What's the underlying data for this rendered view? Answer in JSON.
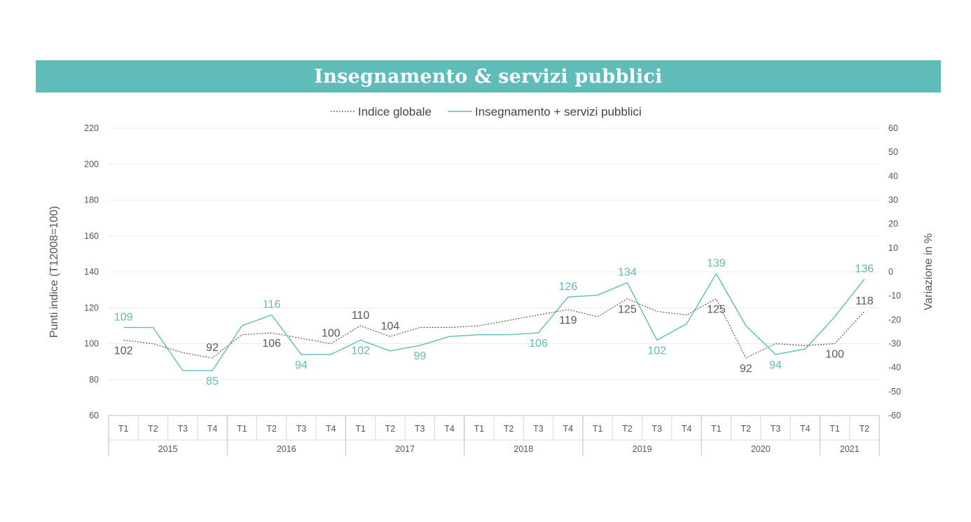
{
  "colors": {
    "accent": "#5fbcb8",
    "global": "#595959",
    "grid": "#ececec",
    "axis": "#bfbfbf"
  },
  "banner": {
    "title": "Insegnamento & servizi pubblici"
  },
  "chart_data": {
    "type": "line",
    "title": "Insegnamento & servizi pubblici",
    "ylabel": "Punti indice (T12008=100)",
    "y2label": "Variazione in %",
    "ylim": [
      60,
      220
    ],
    "yticks": [
      60,
      80,
      100,
      120,
      140,
      160,
      180,
      200,
      220
    ],
    "y2lim": [
      -60,
      60
    ],
    "y2ticks": [
      -60,
      -50,
      -40,
      -30,
      -20,
      -10,
      0,
      10,
      20,
      30,
      40,
      50,
      60
    ],
    "legend": [
      {
        "name": "Indice globale",
        "style": "dotted"
      },
      {
        "name": "Insegnamento + servizi pubblici",
        "style": "solid"
      }
    ],
    "quarters": [
      "T1",
      "T2",
      "T3",
      "T4",
      "T1",
      "T2",
      "T3",
      "T4",
      "T1",
      "T2",
      "T3",
      "T4",
      "T1",
      "T2",
      "T3",
      "T4",
      "T1",
      "T2",
      "T3",
      "T4",
      "T1",
      "T2",
      "T3",
      "T4",
      "T1",
      "T2"
    ],
    "years": [
      {
        "label": "2015",
        "start": 0,
        "end": 3
      },
      {
        "label": "2016",
        "start": 4,
        "end": 7
      },
      {
        "label": "2017",
        "start": 8,
        "end": 11
      },
      {
        "label": "2018",
        "start": 12,
        "end": 15
      },
      {
        "label": "2019",
        "start": 16,
        "end": 19
      },
      {
        "label": "2020",
        "start": 20,
        "end": 23
      },
      {
        "label": "2021",
        "start": 24,
        "end": 25
      }
    ],
    "series": [
      {
        "name": "Indice globale",
        "style": "dotted",
        "values": [
          102,
          100,
          95,
          92,
          105,
          106,
          103,
          100,
          110,
          104,
          109,
          109,
          110,
          113,
          116,
          119,
          115,
          125,
          118,
          116,
          125,
          92,
          100,
          99,
          100,
          118
        ]
      },
      {
        "name": "Insegnamento + servizi pubblici",
        "style": "solid",
        "values": [
          109,
          109,
          85,
          85,
          110,
          116,
          94,
          94,
          102,
          96,
          99,
          104,
          105,
          105,
          106,
          126,
          127,
          134,
          102,
          111,
          139,
          110,
          94,
          97,
          115,
          136
        ]
      }
    ],
    "annotations": [
      {
        "series": 0,
        "index": 0,
        "text": "102",
        "pos": "below"
      },
      {
        "series": 0,
        "index": 3,
        "text": "92",
        "pos": "above"
      },
      {
        "series": 0,
        "index": 5,
        "text": "106",
        "pos": "below"
      },
      {
        "series": 0,
        "index": 7,
        "text": "100",
        "pos": "above"
      },
      {
        "series": 0,
        "index": 8,
        "text": "110",
        "pos": "above"
      },
      {
        "series": 0,
        "index": 9,
        "text": "104",
        "pos": "above"
      },
      {
        "series": 0,
        "index": 15,
        "text": "119",
        "pos": "below"
      },
      {
        "series": 0,
        "index": 17,
        "text": "125",
        "pos": "below"
      },
      {
        "series": 0,
        "index": 20,
        "text": "125",
        "pos": "below"
      },
      {
        "series": 0,
        "index": 21,
        "text": "92",
        "pos": "below"
      },
      {
        "series": 0,
        "index": 24,
        "text": "100",
        "pos": "below"
      },
      {
        "series": 0,
        "index": 25,
        "text": "118",
        "pos": "above"
      },
      {
        "series": 1,
        "index": 0,
        "text": "109",
        "pos": "above"
      },
      {
        "series": 1,
        "index": 3,
        "text": "85",
        "pos": "below"
      },
      {
        "series": 1,
        "index": 5,
        "text": "116",
        "pos": "above"
      },
      {
        "series": 1,
        "index": 6,
        "text": "94",
        "pos": "below"
      },
      {
        "series": 1,
        "index": 8,
        "text": "102",
        "pos": "below"
      },
      {
        "series": 1,
        "index": 10,
        "text": "99",
        "pos": "below"
      },
      {
        "series": 1,
        "index": 14,
        "text": "106",
        "pos": "below"
      },
      {
        "series": 1,
        "index": 15,
        "text": "126",
        "pos": "above"
      },
      {
        "series": 1,
        "index": 17,
        "text": "134",
        "pos": "above"
      },
      {
        "series": 1,
        "index": 18,
        "text": "102",
        "pos": "below"
      },
      {
        "series": 1,
        "index": 20,
        "text": "139",
        "pos": "above"
      },
      {
        "series": 1,
        "index": 22,
        "text": "94",
        "pos": "below"
      },
      {
        "series": 1,
        "index": 25,
        "text": "136",
        "pos": "above"
      }
    ]
  }
}
